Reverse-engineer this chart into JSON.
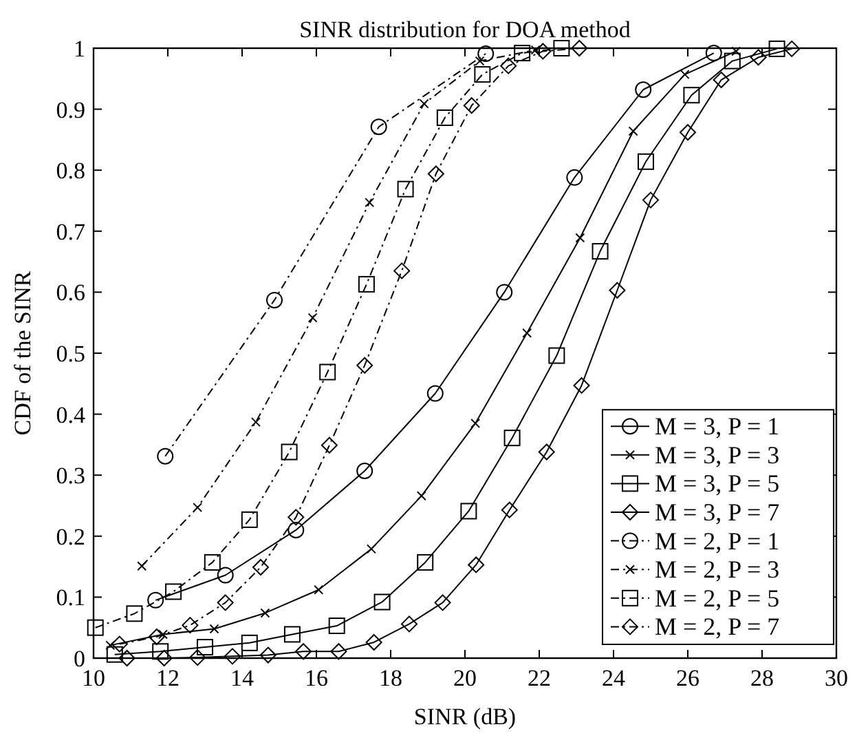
{
  "chart_data": {
    "type": "line",
    "title": "SINR distribution for DOA method",
    "xlabel": "SINR (dB)",
    "ylabel": "CDF of the SINR",
    "xlim": [
      10,
      30
    ],
    "xticks": [
      10,
      12,
      14,
      16,
      18,
      20,
      22,
      24,
      26,
      28,
      30
    ],
    "ylim": [
      0,
      1
    ],
    "yticks": [
      0,
      0.1,
      0.2,
      0.3,
      0.4,
      0.5,
      0.6,
      0.7,
      0.8,
      0.9,
      1
    ],
    "grid": false,
    "legend": "bottom right",
    "series": [
      {
        "name": "M = 3, P = 1",
        "color": "#000000",
        "marker": "circle",
        "line_style": "solid",
        "x": [
          11.67,
          13.55,
          15.45,
          17.3,
          19.2,
          21.06,
          22.95,
          24.8,
          26.7
        ],
        "values": [
          0.095,
          0.136,
          0.21,
          0.307,
          0.434,
          0.6,
          0.788,
          0.932,
          0.992
        ]
      },
      {
        "name": "M = 3, P = 3",
        "color": "#000000",
        "marker": "cross",
        "line_style": "solid",
        "x": [
          10.45,
          11.87,
          13.25,
          14.62,
          16.06,
          17.48,
          18.83,
          20.28,
          21.67,
          23.1,
          24.53,
          25.92,
          27.3
        ],
        "values": [
          0.021,
          0.039,
          0.048,
          0.074,
          0.112,
          0.179,
          0.266,
          0.385,
          0.533,
          0.689,
          0.864,
          0.957,
          0.995
        ]
      },
      {
        "name": "M = 3, P = 5",
        "color": "#000000",
        "marker": "square",
        "line_style": "solid",
        "x": [
          10.57,
          11.8,
          13.0,
          14.2,
          15.35,
          16.55,
          17.77,
          18.93,
          20.1,
          21.27,
          22.47,
          23.64,
          24.87,
          26.1,
          27.2,
          28.4
        ],
        "values": [
          0.006,
          0.011,
          0.018,
          0.025,
          0.039,
          0.053,
          0.092,
          0.157,
          0.241,
          0.361,
          0.496,
          0.667,
          0.814,
          0.923,
          0.979,
          0.999
        ]
      },
      {
        "name": "M = 3, P = 7",
        "color": "#000000",
        "marker": "diamond",
        "line_style": "solid",
        "x": [
          10.9,
          11.9,
          12.8,
          13.74,
          14.7,
          15.65,
          16.6,
          17.55,
          18.5,
          19.4,
          20.3,
          21.2,
          22.2,
          23.14,
          24.1,
          25.0,
          26.0,
          26.9,
          27.9,
          28.8
        ],
        "values": [
          0,
          0,
          0.001,
          0.003,
          0.005,
          0.011,
          0.011,
          0.026,
          0.056,
          0.091,
          0.153,
          0.243,
          0.338,
          0.447,
          0.603,
          0.751,
          0.862,
          0.948,
          0.985,
          0.999
        ]
      },
      {
        "name": "M = 2, P = 1",
        "color": "#000000",
        "marker": "circle",
        "line_style": "dashdot",
        "x": [
          11.93,
          14.87,
          17.68,
          20.56
        ],
        "values": [
          0.331,
          0.587,
          0.871,
          0.991
        ]
      },
      {
        "name": "M = 2, P = 3",
        "color": "#000000",
        "marker": "cross",
        "line_style": "dashdot",
        "x": [
          11.3,
          12.8,
          14.37,
          15.9,
          17.43,
          18.9,
          20.4,
          21.9
        ],
        "values": [
          0.151,
          0.247,
          0.387,
          0.558,
          0.747,
          0.909,
          0.979,
          0.997
        ]
      },
      {
        "name": "M = 2, P = 5",
        "color": "#000000",
        "marker": "square",
        "line_style": "dashdot",
        "x": [
          10.05,
          11.1,
          12.15,
          13.2,
          14.2,
          15.27,
          16.3,
          17.35,
          18.4,
          19.46,
          20.47,
          21.54,
          22.6
        ],
        "values": [
          0.05,
          0.073,
          0.109,
          0.157,
          0.227,
          0.338,
          0.469,
          0.613,
          0.769,
          0.886,
          0.957,
          0.992,
          1.0
        ]
      },
      {
        "name": "M = 2, P = 7",
        "color": "#000000",
        "marker": "diamond",
        "line_style": "dashdot",
        "x": [
          10.7,
          11.7,
          12.6,
          13.55,
          14.5,
          15.45,
          16.35,
          17.3,
          18.3,
          19.22,
          20.18,
          21.17,
          22.1,
          23.08
        ],
        "values": [
          0.023,
          0.035,
          0.054,
          0.091,
          0.149,
          0.231,
          0.349,
          0.48,
          0.635,
          0.794,
          0.906,
          0.971,
          0.995,
          1.0
        ]
      }
    ]
  }
}
